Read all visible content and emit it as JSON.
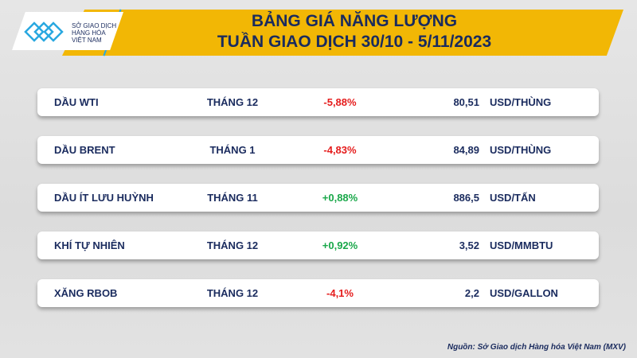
{
  "header": {
    "line1": "BẢNG GIÁ NĂNG LƯỢNG",
    "line2": "TUẦN GIAO DỊCH 30/10 - 5/11/2023"
  },
  "logo": {
    "line1": "SỞ GIAO DỊCH",
    "line2": "HÀNG HÓA",
    "line3": "VIỆT NAM"
  },
  "colors": {
    "banner": "#f2b705",
    "text": "#1a2b5e",
    "negative": "#e51c1c",
    "positive": "#1aa84a"
  },
  "rows": [
    {
      "name": "DẦU WTI",
      "contract": "THÁNG 12",
      "change": "-5,88%",
      "price": "80,51",
      "unit": "USD/THÙNG"
    },
    {
      "name": "DẦU BRENT",
      "contract": "THÁNG 1",
      "change": "-4,83%",
      "price": "84,89",
      "unit": "USD/THÙNG"
    },
    {
      "name": "DẦU ÍT LƯU HUỲNH",
      "contract": "THÁNG 11",
      "change": "+0,88%",
      "price": "886,5",
      "unit": "USD/TẤN"
    },
    {
      "name": "KHÍ TỰ NHIÊN",
      "contract": "THÁNG 12",
      "change": "+0,92%",
      "price": "3,52",
      "unit": "USD/MMBTU"
    },
    {
      "name": "XĂNG RBOB",
      "contract": "THÁNG 12",
      "change": "-4,1%",
      "price": "2,2",
      "unit": "USD/GALLON"
    }
  ],
  "source": "Nguồn: Sở Giao dịch Hàng hóa Việt Nam (MXV)"
}
